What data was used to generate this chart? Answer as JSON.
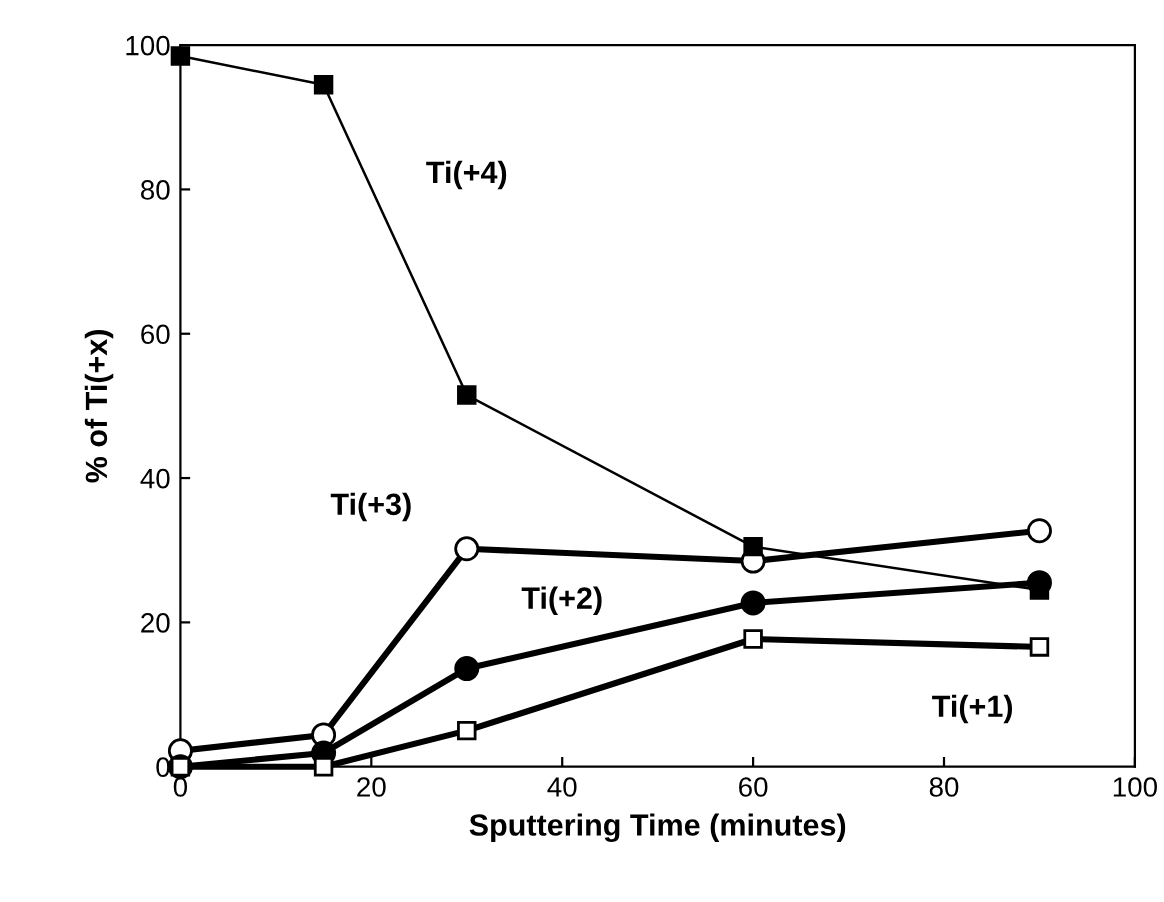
{
  "chart_data": {
    "type": "line",
    "xlabel": "Sputtering Time (minutes)",
    "ylabel": "% of Ti(+x)",
    "x": [
      0,
      15,
      30,
      60,
      90
    ],
    "series": [
      {
        "name": "Ti(+4)",
        "color": "#000000",
        "values": [
          98.5,
          94.5,
          51.5,
          30.5,
          24.5
        ],
        "marker": "square"
      },
      {
        "name": "Ti(+3)",
        "color": "#000000",
        "values": [
          2.2,
          4.4,
          30.2,
          28.5,
          32.7
        ],
        "marker": "circle"
      },
      {
        "name": "Ti(+2)",
        "color": "#000000",
        "values": [
          0,
          1.9,
          13.6,
          22.7,
          25.5
        ],
        "marker": "circle"
      },
      {
        "name": "Ti(+1)",
        "color": "#000000",
        "values": [
          0,
          0,
          5,
          17.7,
          16.6
        ],
        "marker": "square"
      }
    ],
    "xlim": [
      0,
      100
    ],
    "ylim": [
      0,
      100
    ],
    "xticks": [
      0,
      20,
      40,
      60,
      80,
      100
    ],
    "yticks": [
      0,
      20,
      40,
      60,
      80,
      100
    ],
    "grid": false,
    "legend": false
  }
}
